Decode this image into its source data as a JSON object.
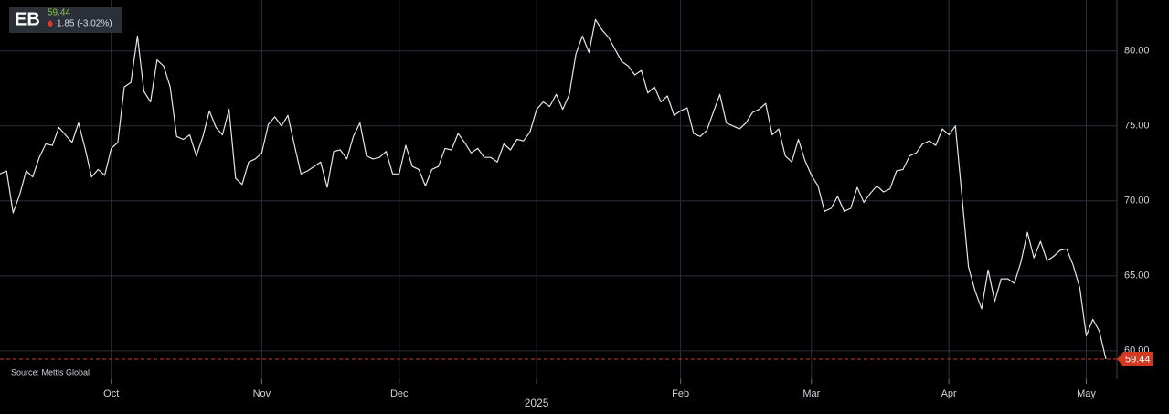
{
  "header": {
    "symbol": "EB",
    "price": "59.44",
    "change": "1.85 (-3.02%)"
  },
  "chart_data": {
    "type": "line",
    "source": "Source: Mettis Global",
    "categories": [
      null,
      null,
      null,
      null,
      null,
      null,
      null,
      null,
      null,
      null,
      null,
      null,
      null,
      null,
      null,
      null,
      null,
      "Oct",
      null,
      null,
      null,
      null,
      null,
      null,
      null,
      null,
      null,
      null,
      null,
      null,
      null,
      null,
      null,
      null,
      null,
      null,
      null,
      null,
      null,
      null,
      "Nov",
      null,
      null,
      null,
      null,
      null,
      null,
      null,
      null,
      null,
      null,
      null,
      null,
      null,
      null,
      null,
      null,
      null,
      null,
      null,
      null,
      "Dec",
      null,
      null,
      null,
      null,
      null,
      null,
      null,
      null,
      null,
      null,
      null,
      null,
      null,
      null,
      null,
      null,
      null,
      null,
      null,
      null,
      "2025",
      null,
      null,
      null,
      null,
      null,
      null,
      null,
      null,
      null,
      null,
      null,
      null,
      null,
      null,
      null,
      null,
      null,
      null,
      null,
      null,
      null,
      "Feb",
      null,
      null,
      null,
      null,
      null,
      null,
      null,
      null,
      null,
      null,
      null,
      null,
      null,
      null,
      null,
      null,
      null,
      null,
      null,
      "Mar",
      null,
      null,
      null,
      null,
      null,
      null,
      null,
      null,
      null,
      null,
      null,
      null,
      null,
      null,
      null,
      null,
      null,
      null,
      null,
      null,
      "Apr",
      null,
      null,
      null,
      null,
      null,
      null,
      null,
      null,
      null,
      null,
      null,
      null,
      null,
      null,
      null,
      null,
      null,
      null,
      null,
      null,
      "May",
      null,
      null,
      null
    ],
    "series": [
      {
        "name": "EB",
        "color": "#e6e6e6",
        "values": [
          71.8,
          72.0,
          69.2,
          70.4,
          72.0,
          71.6,
          72.9,
          73.8,
          73.7,
          74.9,
          74.4,
          73.9,
          75.2,
          73.5,
          71.6,
          72.1,
          71.7,
          73.5,
          73.9,
          77.6,
          77.9,
          81.0,
          77.3,
          76.6,
          79.4,
          79.0,
          77.6,
          74.3,
          74.1,
          74.4,
          73.0,
          74.3,
          76.0,
          74.9,
          74.4,
          76.1,
          71.5,
          71.1,
          72.6,
          72.8,
          73.2,
          75.1,
          75.6,
          75.0,
          75.7,
          73.7,
          71.8,
          72.0,
          72.3,
          72.6,
          70.9,
          73.3,
          73.4,
          72.8,
          74.3,
          75.2,
          73.0,
          72.8,
          72.9,
          73.3,
          71.8,
          71.8,
          73.7,
          72.3,
          72.1,
          71.0,
          72.1,
          72.3,
          73.5,
          73.4,
          74.5,
          73.9,
          73.2,
          73.5,
          72.9,
          72.9,
          72.6,
          73.8,
          73.4,
          74.1,
          74.0,
          74.6,
          76.1,
          76.6,
          76.3,
          77.1,
          76.1,
          77.1,
          79.8,
          81.0,
          79.9,
          82.1,
          81.4,
          80.9,
          80.1,
          79.3,
          79.0,
          78.4,
          78.7,
          77.2,
          77.6,
          76.6,
          77.0,
          75.7,
          76.0,
          76.2,
          74.5,
          74.3,
          74.7,
          75.9,
          77.1,
          75.2,
          75.0,
          74.8,
          75.2,
          75.9,
          76.1,
          76.5,
          74.4,
          74.8,
          73.0,
          72.6,
          74.1,
          72.7,
          71.7,
          71.0,
          69.3,
          69.5,
          70.3,
          69.3,
          69.5,
          70.9,
          69.9,
          70.5,
          71.0,
          70.6,
          70.8,
          72.0,
          72.1,
          73.0,
          73.2,
          73.8,
          74.0,
          73.7,
          74.8,
          74.4,
          75.0,
          70.3,
          65.6,
          64.0,
          62.8,
          65.4,
          63.3,
          64.8,
          64.8,
          64.5,
          65.9,
          67.9,
          66.2,
          67.3,
          66.0,
          66.3,
          66.7,
          66.8,
          65.7,
          64.2,
          61.0,
          62.1,
          61.3,
          59.44
        ]
      }
    ],
    "last_label": "59.44",
    "marker_color": "#d2391f",
    "ylim": [
      58.1,
      83.4
    ],
    "yticks": [
      {
        "value": 60,
        "label": "60.00"
      },
      {
        "value": 65,
        "label": "65.00"
      },
      {
        "value": 70,
        "label": "70.00"
      },
      {
        "value": 75,
        "label": "75.00"
      },
      {
        "value": 80,
        "label": "80.00"
      }
    ],
    "grid": true
  }
}
